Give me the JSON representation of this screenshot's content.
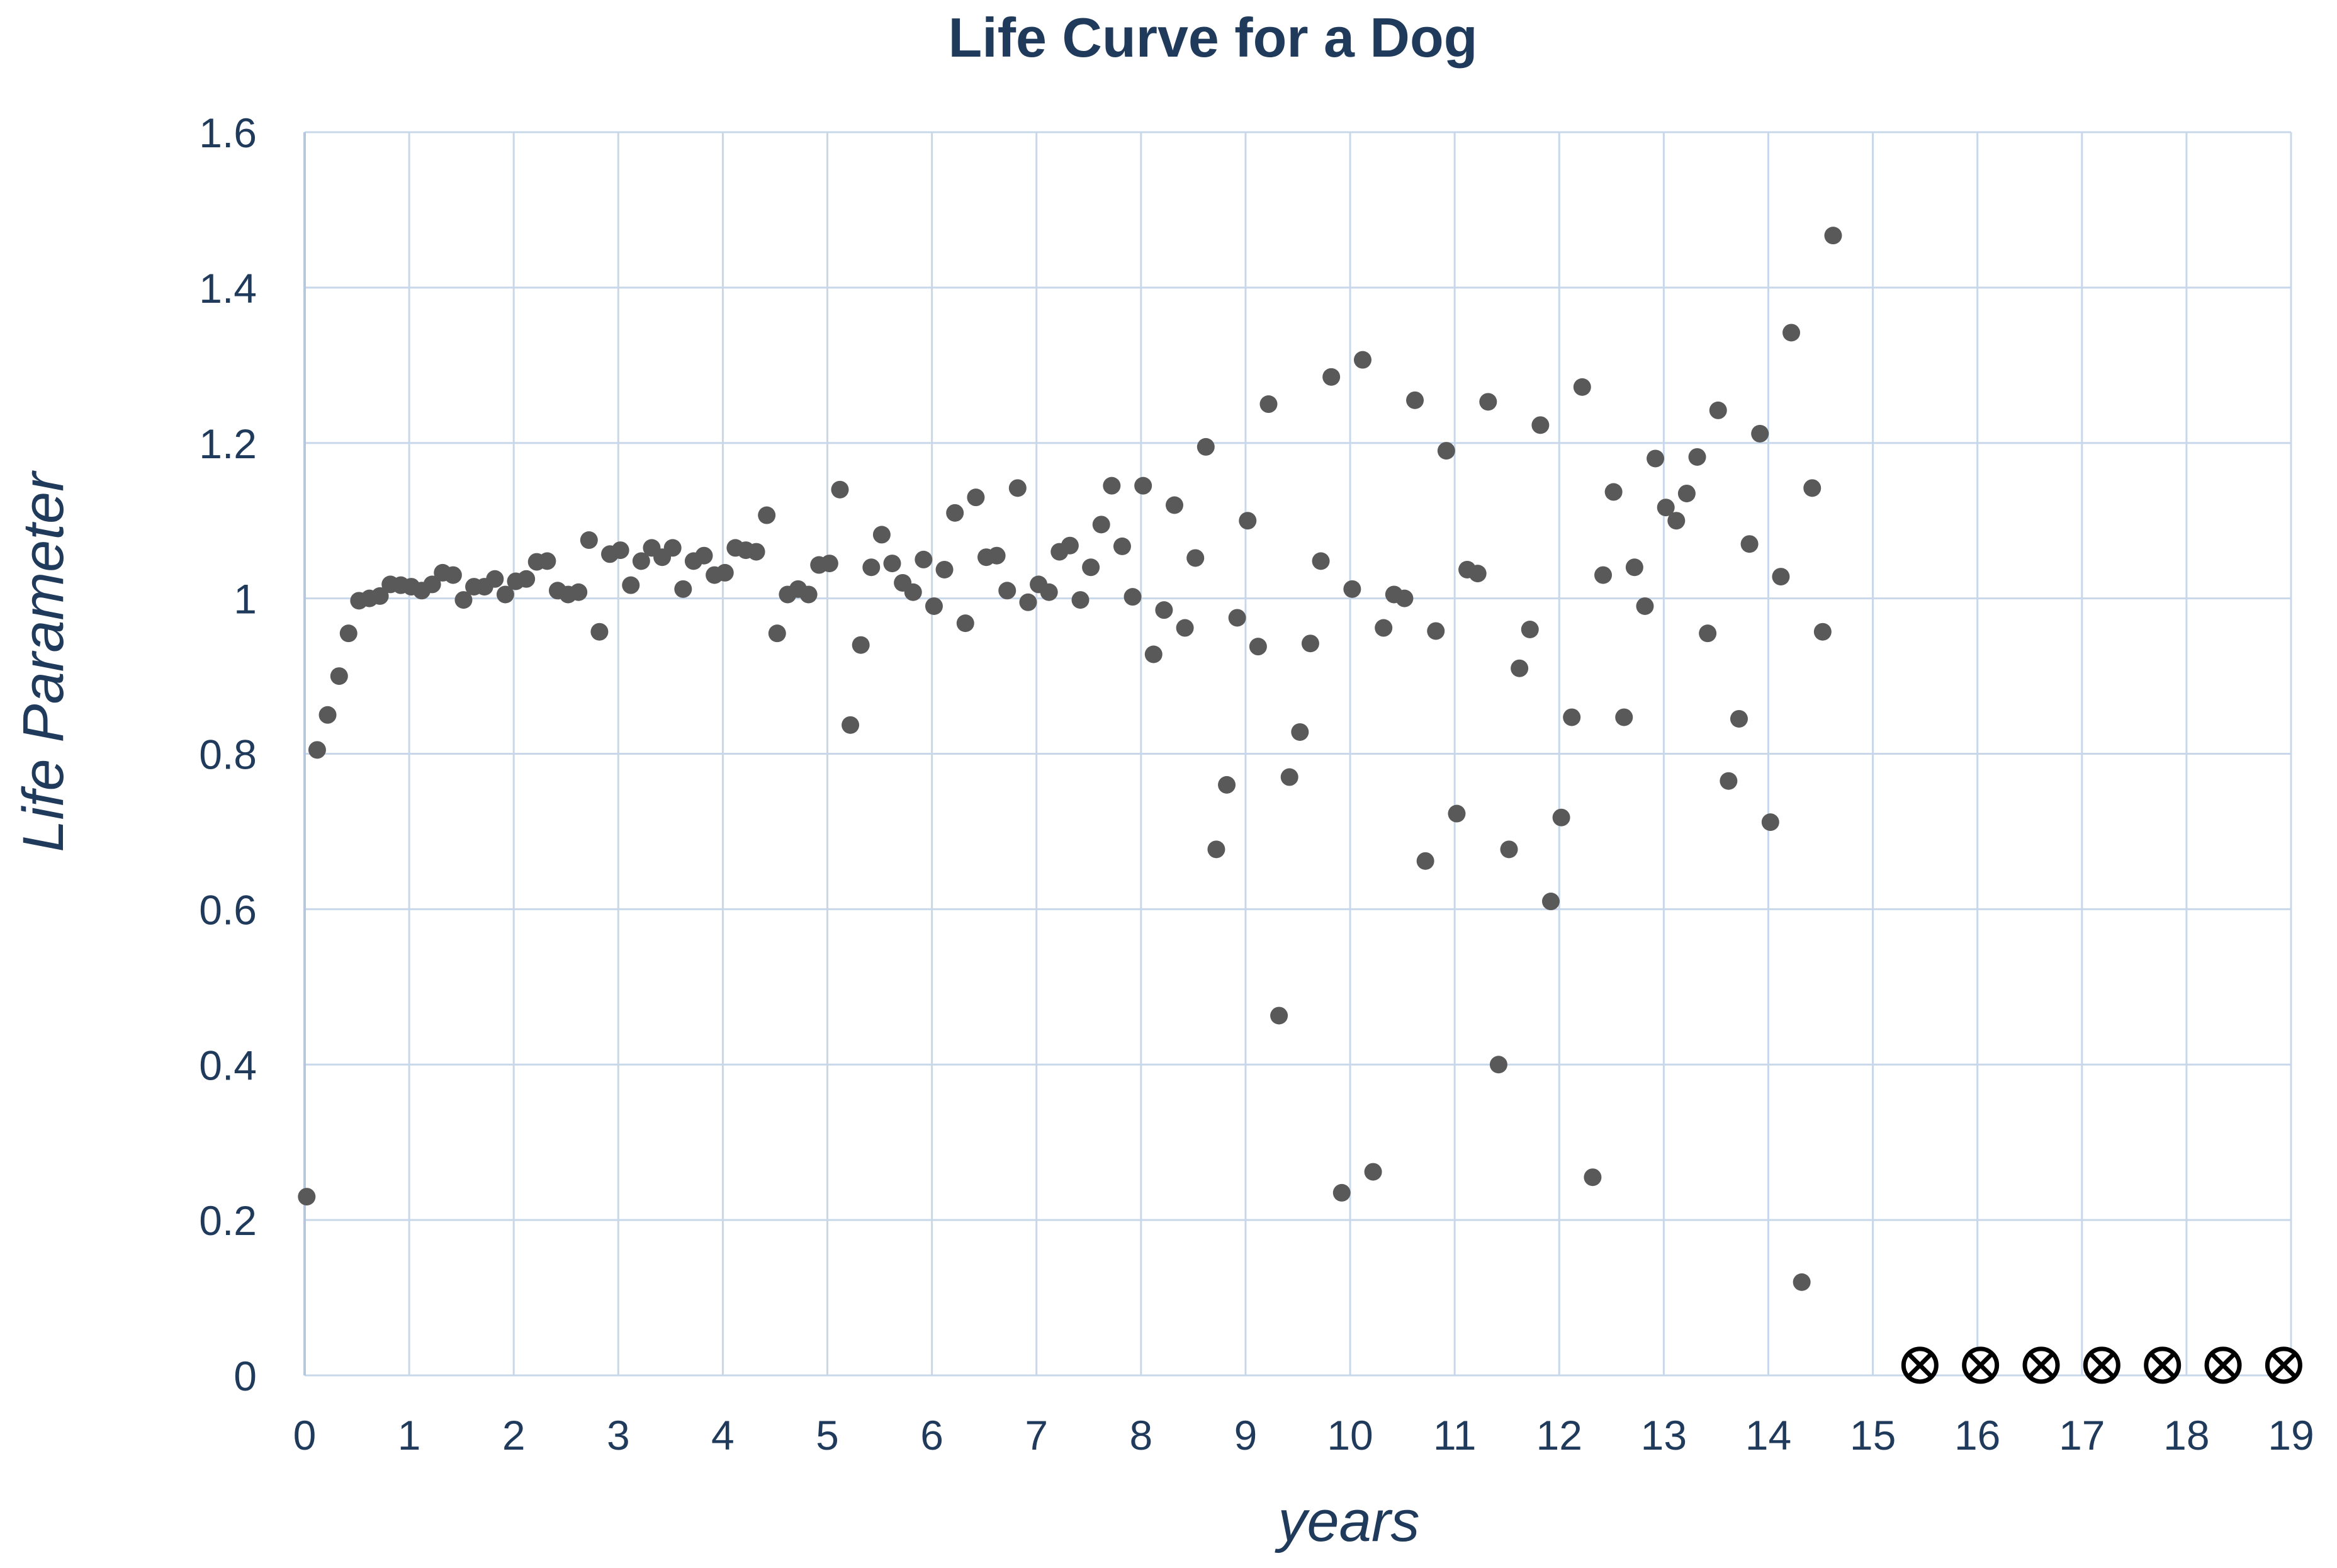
{
  "chart_data": {
    "type": "scatter",
    "title": "Life Curve for a Dog",
    "xlabel": "years",
    "ylabel": "Life Parameter",
    "xlim": [
      0,
      19
    ],
    "ylim": [
      0,
      1.6
    ],
    "x_ticks": [
      "0",
      "1",
      "2",
      "3",
      "4",
      "5",
      "6",
      "7",
      "8",
      "9",
      "10",
      "11",
      "12",
      "13",
      "14",
      "15",
      "16",
      "17",
      "18",
      "19"
    ],
    "y_ticks": [
      "0",
      "0.2",
      "0.4",
      "0.6",
      "0.8",
      "1",
      "1.2",
      "1.4",
      "1.6"
    ],
    "grid": true,
    "legend": "none",
    "colors": {
      "title": "#1f3a5a",
      "axis_text": "#1f3a5a",
      "grid": "#c8d8ea",
      "point": "#595959",
      "end_marker": "#000000"
    },
    "series": [
      {
        "marker": "filled-circle",
        "x": [
          0.02,
          0.12,
          0.22,
          0.33,
          0.42,
          0.52,
          0.62,
          0.72,
          0.82,
          0.92,
          1.02,
          1.12,
          1.22,
          1.32,
          1.42,
          1.52,
          1.62,
          1.72,
          1.82,
          1.92,
          2.02,
          2.12,
          2.22,
          2.32,
          2.42,
          2.52,
          2.62,
          2.72,
          2.82,
          2.92,
          3.02,
          3.12,
          3.22,
          3.32,
          3.42,
          3.52,
          3.62,
          3.72,
          3.82,
          3.92,
          4.02,
          4.12,
          4.22,
          4.32,
          4.42,
          4.52,
          4.62,
          4.72,
          4.82,
          4.92,
          5.02,
          5.12,
          5.22,
          5.32,
          5.42,
          5.52,
          5.62,
          5.72,
          5.82,
          5.92,
          6.02,
          6.12,
          6.22,
          6.32,
          6.42,
          6.52,
          6.62,
          6.72,
          6.82,
          6.92,
          7.02,
          7.12,
          7.22,
          7.32,
          7.42,
          7.52,
          7.62,
          7.72,
          7.82,
          7.92,
          8.02,
          8.12,
          8.22,
          8.32,
          8.42,
          8.52,
          8.62,
          8.72,
          8.82,
          8.92,
          9.02,
          9.12,
          9.22,
          9.32,
          9.42,
          9.52,
          9.62,
          9.72,
          9.82,
          9.92,
          10.02,
          10.12,
          10.22,
          10.32,
          10.42,
          10.52,
          10.62,
          10.72,
          10.82,
          10.92,
          11.02,
          11.12,
          11.22,
          11.32,
          11.42,
          11.52,
          11.62,
          11.72,
          11.82,
          11.92,
          12.02,
          12.12,
          12.22,
          12.32,
          12.42,
          12.52,
          12.62,
          12.72,
          12.82,
          12.92,
          13.02,
          13.12,
          13.22,
          13.32,
          13.42,
          13.52,
          13.62,
          13.72,
          13.82,
          13.92,
          14.02,
          14.12,
          14.22,
          14.32,
          14.42,
          14.52,
          14.62
        ],
        "y": [
          0.23,
          0.805,
          0.85,
          0.9,
          0.955,
          0.997,
          1.0,
          1.003,
          1.018,
          1.017,
          1.015,
          1.01,
          1.018,
          1.033,
          1.03,
          0.998,
          1.015,
          1.015,
          1.025,
          1.005,
          1.022,
          1.025,
          1.047,
          1.048,
          1.01,
          1.005,
          1.008,
          1.075,
          0.957,
          1.057,
          1.062,
          1.017,
          1.048,
          1.065,
          1.053,
          1.065,
          1.012,
          1.048,
          1.055,
          1.03,
          1.033,
          1.065,
          1.062,
          1.06,
          1.107,
          0.955,
          1.005,
          1.012,
          1.005,
          1.043,
          1.045,
          1.14,
          0.837,
          0.94,
          1.04,
          1.082,
          1.045,
          1.02,
          1.008,
          1.05,
          0.99,
          1.037,
          1.11,
          0.968,
          1.13,
          1.053,
          1.055,
          1.01,
          1.142,
          0.995,
          1.018,
          1.008,
          1.06,
          1.068,
          0.998,
          1.04,
          1.095,
          1.145,
          1.067,
          1.002,
          1.145,
          0.928,
          0.985,
          1.12,
          0.962,
          1.052,
          1.195,
          0.677,
          0.76,
          0.975,
          1.1,
          0.938,
          1.25,
          0.463,
          0.77,
          0.828,
          0.942,
          1.048,
          1.285,
          0.235,
          1.012,
          1.307,
          0.262,
          0.962,
          1.005,
          1.0,
          1.255,
          0.662,
          0.958,
          1.19,
          0.723,
          1.037,
          1.032,
          1.253,
          0.4,
          0.677,
          0.91,
          0.96,
          1.223,
          0.61,
          0.718,
          0.847,
          1.272,
          0.255,
          1.03,
          1.137,
          0.847,
          1.04,
          0.99,
          1.18,
          1.117,
          1.1,
          1.135,
          1.182,
          0.955,
          1.242,
          0.765,
          0.845,
          1.07,
          1.212,
          0.712,
          1.028,
          1.342,
          0.12,
          1.142,
          0.957,
          1.467
        ]
      },
      {
        "marker": "circled-x",
        "x": [
          15.45,
          16.03,
          16.61,
          17.19,
          17.77,
          18.35,
          18.93
        ],
        "y": [
          0.005,
          0.005,
          0.005,
          0.005,
          0.005,
          0.005,
          0.005
        ]
      }
    ]
  }
}
